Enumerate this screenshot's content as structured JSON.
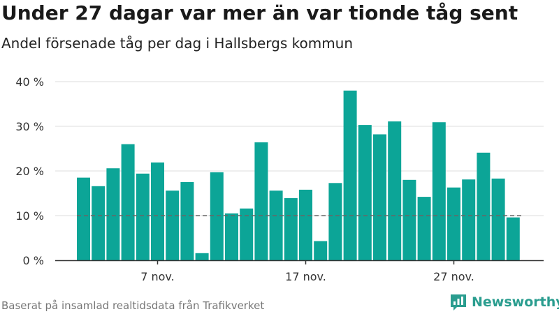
{
  "header": {
    "title": "Under 27 dagar var mer än var tionde tåg sent",
    "subtitle": "Andel försenade tåg per dag i Hallsbergs kommun"
  },
  "footer": {
    "source": "Baserat på insamlad realtidsdata från Trafikverket",
    "brand": "Newsworthy"
  },
  "colors": {
    "bar": "#0ca597",
    "grid": "#dddddd",
    "reference_line": "#666666",
    "brand": "#2a9d8f"
  },
  "chart_data": {
    "type": "bar",
    "title": "Under 27 dagar var mer än var tionde tåg sent",
    "subtitle": "Andel försenade tåg per dag i Hallsbergs kommun",
    "xlabel": "",
    "ylabel": "",
    "x": [
      "2021-11-02",
      "2021-11-03",
      "2021-11-04",
      "2021-11-05",
      "2021-11-06",
      "2021-11-07",
      "2021-11-08",
      "2021-11-09",
      "2021-11-10",
      "2021-11-11",
      "2021-11-12",
      "2021-11-13",
      "2021-11-14",
      "2021-11-15",
      "2021-11-16",
      "2021-11-17",
      "2021-11-18",
      "2021-11-19",
      "2021-11-20",
      "2021-11-21",
      "2021-11-22",
      "2021-11-23",
      "2021-11-24",
      "2021-11-25",
      "2021-11-26",
      "2021-11-27",
      "2021-11-28",
      "2021-11-29",
      "2021-11-30",
      "2021-12-01"
    ],
    "values": [
      18.5,
      16.6,
      20.6,
      26.0,
      19.4,
      21.9,
      15.6,
      17.5,
      1.6,
      19.7,
      10.5,
      11.6,
      26.4,
      15.6,
      13.9,
      15.8,
      4.3,
      17.3,
      38.0,
      30.3,
      28.2,
      31.1,
      18.0,
      14.2,
      30.9,
      16.3,
      18.1,
      24.1,
      18.3,
      9.6
    ],
    "ylim": [
      0,
      40
    ],
    "yticks": [
      0,
      10,
      20,
      30,
      40
    ],
    "ytick_labels": [
      "0 %",
      "10 %",
      "20 %",
      "30 %",
      "40 %"
    ],
    "xtick_labels": [
      {
        "index": 5,
        "label": "7 nov."
      },
      {
        "index": 15,
        "label": "17 nov."
      },
      {
        "index": 25,
        "label": "27 nov."
      }
    ],
    "reference_line": {
      "y": 10,
      "style": "dashed"
    },
    "grid": true,
    "legend": "none"
  }
}
